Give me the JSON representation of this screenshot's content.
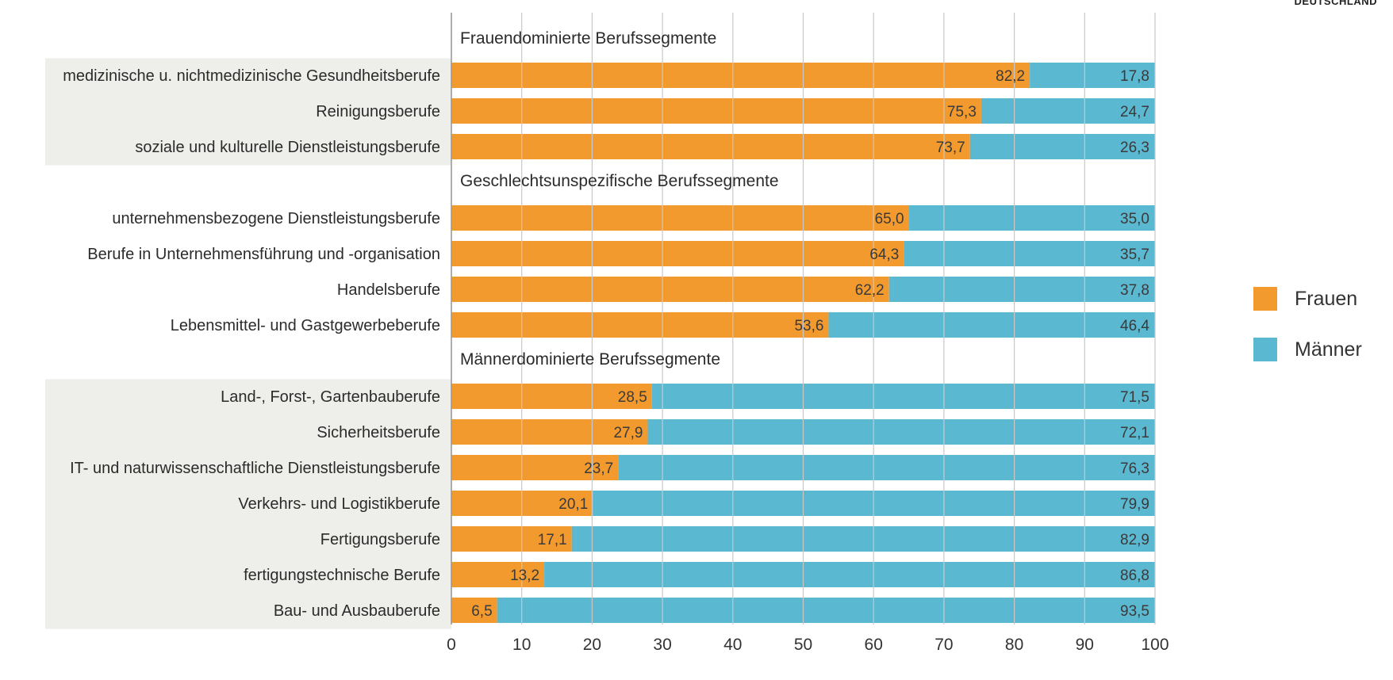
{
  "corner_label": "DEUTSCHLAND",
  "colors": {
    "frauen": "#f29a2e",
    "maenner": "#5bb8d1",
    "band": "#eeeeea",
    "grid": "#c8c8c8"
  },
  "chart_data": {
    "type": "bar",
    "orientation": "horizontal",
    "stacked": true,
    "xlim": [
      0,
      100
    ],
    "xticks": [
      "0",
      "10",
      "20",
      "30",
      "40",
      "50",
      "60",
      "70",
      "80",
      "90",
      "100"
    ],
    "legend": {
      "placement": "right",
      "entries": [
        {
          "key": "frauen",
          "label": "Frauen"
        },
        {
          "key": "maenner",
          "label": "Männer"
        }
      ]
    },
    "groups": [
      {
        "label": "Frauendominierte Berufssegmente",
        "shaded": true,
        "rows": [
          {
            "category": "medizinische u. nichtmedizinische Gesundheitsberufe",
            "frauen": 82.2,
            "maenner": 17.8,
            "frauen_label": "82,2",
            "maenner_label": "17,8"
          },
          {
            "category": "Reinigungsberufe",
            "frauen": 75.3,
            "maenner": 24.7,
            "frauen_label": "75,3",
            "maenner_label": "24,7"
          },
          {
            "category": "soziale und kulturelle Dienstleistungsberufe",
            "frauen": 73.7,
            "maenner": 26.3,
            "frauen_label": "73,7",
            "maenner_label": "26,3"
          }
        ]
      },
      {
        "label": "Geschlechtsunspezifische Berufssegmente",
        "shaded": false,
        "rows": [
          {
            "category": "unternehmensbezogene Dienstleistungsberufe",
            "frauen": 65.0,
            "maenner": 35.0,
            "frauen_label": "65,0",
            "maenner_label": "35,0"
          },
          {
            "category": "Berufe in Unternehmensführung und -organisation",
            "frauen": 64.3,
            "maenner": 35.7,
            "frauen_label": "64,3",
            "maenner_label": "35,7"
          },
          {
            "category": "Handelsberufe",
            "frauen": 62.2,
            "maenner": 37.8,
            "frauen_label": "62,2",
            "maenner_label": "37,8"
          },
          {
            "category": "Lebensmittel- und Gastgewerbeberufe",
            "frauen": 53.6,
            "maenner": 46.4,
            "frauen_label": "53,6",
            "maenner_label": "46,4"
          }
        ]
      },
      {
        "label": "Männerdominierte Berufssegmente",
        "shaded": true,
        "rows": [
          {
            "category": "Land-, Forst-, Gartenbauberufe",
            "frauen": 28.5,
            "maenner": 71.5,
            "frauen_label": "28,5",
            "maenner_label": "71,5"
          },
          {
            "category": "Sicherheitsberufe",
            "frauen": 27.9,
            "maenner": 72.1,
            "frauen_label": "27,9",
            "maenner_label": "72,1"
          },
          {
            "category": "IT- und naturwissenschaftliche Dienstleistungsberufe",
            "frauen": 23.7,
            "maenner": 76.3,
            "frauen_label": "23,7",
            "maenner_label": "76,3"
          },
          {
            "category": "Verkehrs- und Logistikberufe",
            "frauen": 20.1,
            "maenner": 79.9,
            "frauen_label": "20,1",
            "maenner_label": "79,9"
          },
          {
            "category": "Fertigungsberufe",
            "frauen": 17.1,
            "maenner": 82.9,
            "frauen_label": "17,1",
            "maenner_label": "82,9"
          },
          {
            "category": "fertigungstechnische Berufe",
            "frauen": 13.2,
            "maenner": 86.8,
            "frauen_label": "13,2",
            "maenner_label": "86,8"
          },
          {
            "category": "Bau- und Ausbauberufe",
            "frauen": 6.5,
            "maenner": 93.5,
            "frauen_label": "6,5",
            "maenner_label": "93,5"
          }
        ]
      }
    ]
  }
}
